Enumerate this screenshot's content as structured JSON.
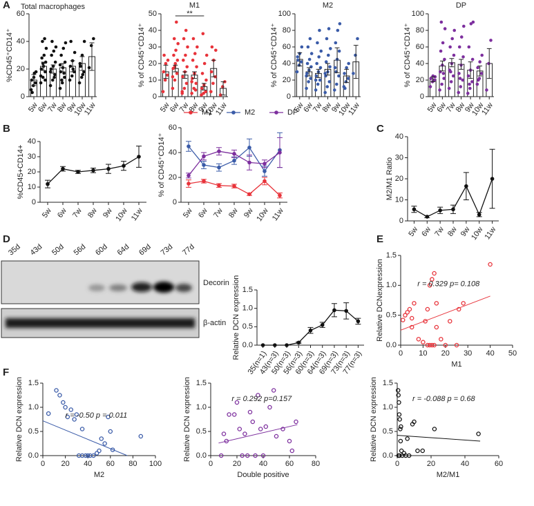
{
  "blot": {
    "lanes": [
      "35d",
      "43d",
      "50d",
      "56d",
      "60d",
      "64d",
      "69d",
      "73d",
      "77d"
    ],
    "targets": [
      "Decorin",
      "β-actin"
    ]
  },
  "chart_data": [
    {
      "type": "bar",
      "panel": "A",
      "title": "Total macrophages",
      "ylabel": "%CD45⁺CD14⁺",
      "categories": [
        "5w",
        "6w",
        "7w",
        "8w",
        "9w",
        "10w",
        "11w"
      ],
      "values": [
        12,
        22,
        20,
        21,
        22,
        24,
        29
      ],
      "errors": [
        4,
        3,
        3,
        3,
        4,
        5,
        10
      ],
      "color": "#111111",
      "ylim": [
        0,
        60
      ],
      "yticks": [
        0,
        20,
        40,
        60
      ],
      "points": [
        [
          5,
          8,
          10,
          12,
          14,
          18,
          3,
          17
        ],
        [
          10,
          14,
          18,
          20,
          22,
          25,
          28,
          30,
          35,
          40,
          42,
          15,
          24,
          12
        ],
        [
          8,
          12,
          16,
          20,
          22,
          25,
          30,
          33,
          36,
          40,
          14,
          18
        ],
        [
          6,
          10,
          14,
          18,
          21,
          25,
          30,
          35,
          39,
          12,
          17,
          23
        ],
        [
          12,
          15,
          18,
          22,
          26,
          32,
          40,
          20
        ],
        [
          10,
          14,
          18,
          24,
          30,
          40,
          22,
          16
        ],
        [
          21,
          37,
          42
        ]
      ]
    },
    {
      "type": "bar",
      "title": "M1",
      "ylabel": "% of CD45⁺CD14⁺",
      "categories": [
        "5w",
        "6w",
        "7w",
        "8w",
        "9w",
        "10w",
        "11w"
      ],
      "values": [
        15,
        17,
        13,
        13,
        6,
        17,
        5
      ],
      "errors": [
        4,
        2,
        2,
        2,
        2,
        5,
        4
      ],
      "color": "#e8333a",
      "ylim": [
        0,
        50
      ],
      "yticks": [
        0,
        10,
        20,
        30,
        40,
        50
      ],
      "significance": "**",
      "points": [
        [
          3,
          10,
          13,
          15,
          20,
          22,
          25
        ],
        [
          5,
          10,
          14,
          17,
          20,
          22,
          25,
          28,
          32,
          35,
          45,
          12,
          18
        ],
        [
          2,
          5,
          8,
          12,
          15,
          18,
          22,
          25,
          30,
          35,
          40,
          3
        ],
        [
          2,
          5,
          8,
          11,
          14,
          18,
          22,
          26,
          30,
          35,
          4,
          9
        ],
        [
          1,
          2,
          3,
          5,
          7,
          10,
          14,
          20,
          25,
          38
        ],
        [
          3,
          8,
          12,
          15,
          22,
          28,
          30
        ],
        [
          1,
          6,
          9
        ]
      ]
    },
    {
      "type": "bar",
      "title": "M2",
      "ylabel": "% of CD45⁺CD14⁺",
      "categories": [
        "5w",
        "6w",
        "7w",
        "8w",
        "9w",
        "10w",
        "11w"
      ],
      "values": [
        45,
        30,
        28,
        33,
        44,
        25,
        42
      ],
      "errors": [
        8,
        5,
        5,
        7,
        15,
        8,
        20
      ],
      "color": "#3a5ba8",
      "ylim": [
        0,
        100
      ],
      "yticks": [
        0,
        20,
        40,
        60,
        80,
        100
      ],
      "points": [
        [
          30,
          38,
          42,
          48,
          52,
          60,
          44
        ],
        [
          10,
          18,
          22,
          28,
          32,
          36,
          40,
          45,
          52,
          60,
          70,
          25
        ],
        [
          8,
          15,
          20,
          25,
          30,
          35,
          40,
          48,
          55,
          65,
          80,
          20
        ],
        [
          5,
          12,
          18,
          25,
          30,
          36,
          42,
          50,
          58,
          70,
          82,
          28
        ],
        [
          8,
          15,
          25,
          35,
          45,
          55,
          65,
          80,
          88,
          30
        ],
        [
          12,
          18,
          22,
          28,
          35,
          40,
          10
        ],
        [
          28,
          50,
          70
        ]
      ]
    },
    {
      "type": "bar",
      "title": "DP",
      "ylabel": "% of CD45⁺CD14⁺",
      "categories": [
        "5w",
        "6w",
        "7w",
        "8w",
        "9w",
        "10w",
        "11w"
      ],
      "values": [
        21,
        37,
        41,
        39,
        32,
        31,
        40
      ],
      "errors": [
        3,
        6,
        5,
        6,
        10,
        6,
        18
      ],
      "color": "#7d2f9e",
      "ylim": [
        0,
        100
      ],
      "yticks": [
        0,
        20,
        40,
        60,
        80,
        100
      ],
      "points": [
        [
          12,
          18,
          20,
          22,
          25,
          24
        ],
        [
          8,
          15,
          22,
          30,
          38,
          45,
          55,
          65,
          82,
          90,
          28
        ],
        [
          10,
          18,
          25,
          32,
          40,
          50,
          60,
          70,
          80,
          30
        ],
        [
          5,
          12,
          20,
          28,
          38,
          48,
          60,
          72,
          85,
          22
        ],
        [
          4,
          10,
          18,
          25,
          32,
          45,
          60,
          88,
          90,
          15
        ],
        [
          15,
          22,
          28,
          35,
          42,
          50,
          20
        ],
        [
          8,
          40,
          68
        ]
      ]
    },
    {
      "type": "line",
      "panel": "B",
      "ylabel": "%CD45+CD14+",
      "categories": [
        "5w",
        "6w",
        "7w",
        "8w",
        "9w",
        "10w",
        "11w"
      ],
      "values": [
        12,
        22,
        20,
        21,
        22,
        24,
        30
      ],
      "errors": [
        2.5,
        1.5,
        1,
        1.5,
        3,
        3,
        7
      ],
      "color": "#111111",
      "ylim": [
        0,
        40
      ],
      "yticks": [
        0,
        10,
        20,
        30,
        40
      ]
    },
    {
      "type": "line",
      "ylabel": "% of CD45⁺CD14⁺",
      "categories": [
        "5w",
        "6w",
        "7w",
        "8w",
        "9w",
        "10w",
        "11w"
      ],
      "ylim": [
        0,
        60
      ],
      "yticks": [
        0,
        20,
        40,
        60
      ],
      "series": [
        {
          "name": "M1",
          "color": "#e8333a",
          "values": [
            15,
            17,
            13.5,
            13,
            6.5,
            17,
            5.5
          ],
          "errors": [
            3,
            1.5,
            1.5,
            1.5,
            1,
            3,
            2
          ]
        },
        {
          "name": "M2",
          "color": "#3a5ba8",
          "values": [
            45,
            30,
            28,
            33.5,
            44,
            25,
            42
          ],
          "errors": [
            4,
            3,
            3,
            3,
            7,
            4,
            14
          ]
        },
        {
          "name": "DP",
          "color": "#7d2f9e",
          "values": [
            21.5,
            37,
            41,
            39,
            32,
            31,
            40
          ],
          "errors": [
            2,
            3,
            3,
            3,
            6,
            3,
            12
          ]
        }
      ]
    },
    {
      "type": "line",
      "panel": "C",
      "ylabel": "M2/M1 Ratio",
      "categories": [
        "5w",
        "6w",
        "7w",
        "8w",
        "9w",
        "10w",
        "11w"
      ],
      "values": [
        5.5,
        2,
        5,
        5.5,
        16.5,
        3,
        20
      ],
      "errors": [
        1.5,
        0.5,
        1.5,
        2,
        6.5,
        1,
        14
      ],
      "color": "#111111",
      "ylim": [
        0,
        40
      ],
      "yticks": [
        0,
        10,
        20,
        30,
        40
      ]
    },
    {
      "type": "line",
      "panel": "D",
      "ylabel": "Relative DCN expression",
      "categories": [
        "35(n=1)",
        "43(n=3)",
        "50(n=3)",
        "56(n=3)",
        "60(n=3)",
        "64(n=3)",
        "69(n=3)",
        "73(n=3)",
        "77(n=3)"
      ],
      "values": [
        0,
        0,
        0,
        0.07,
        0.4,
        0.55,
        0.95,
        0.93,
        0.65
      ],
      "errors": [
        0,
        0,
        0,
        0.02,
        0.08,
        0.07,
        0.18,
        0.22,
        0.08
      ],
      "color": "#111111",
      "ylim": [
        0,
        1.5
      ],
      "yticks": [
        {
          "value": 0,
          "label": "0.0"
        },
        0.5,
        {
          "value": 1,
          "label": "1.0"
        },
        1.5
      ]
    },
    {
      "type": "scatter",
      "panel": "E",
      "ylabel": "Relative DCNexpression",
      "xlabel": "M1",
      "annotation": "r = 0.329 p= 0.108",
      "color": "#e8333a",
      "xlim": [
        0,
        50
      ],
      "xticks": [
        0,
        10,
        20,
        30,
        40,
        50
      ],
      "ylim": [
        0,
        1.5
      ],
      "yticks": [
        {
          "value": 0,
          "label": "0.0"
        },
        0.5,
        {
          "value": 1,
          "label": "1.0"
        },
        1.5
      ],
      "x": [
        1,
        2,
        3,
        4,
        5,
        6,
        8,
        10,
        11,
        12,
        13,
        14,
        15,
        16,
        13,
        14,
        15,
        12,
        18,
        20,
        22,
        25,
        26,
        28,
        40,
        5,
        16
      ],
      "y": [
        0.42,
        0.5,
        0.55,
        0.6,
        0.3,
        0.7,
        0.1,
        0.05,
        0.4,
        0,
        1,
        1.1,
        1.2,
        0.7,
        0,
        0,
        0,
        0.6,
        0.1,
        0,
        0.4,
        0,
        0.6,
        0.7,
        1.35,
        0.45,
        0.3
      ],
      "fit": {
        "x": [
          0,
          40
        ],
        "y": [
          0.25,
          0.82
        ]
      }
    },
    {
      "type": "scatter",
      "panel": "F",
      "ylabel": "Relative DCN expression",
      "xlabel": "M2",
      "annotation": "r = -0.50 p = 0.011",
      "color": "#3a5ba8",
      "xlim": [
        0,
        100
      ],
      "xticks": [
        0,
        20,
        40,
        60,
        80,
        100
      ],
      "ylim": [
        0,
        1.5
      ],
      "yticks": [
        {
          "value": 0,
          "label": "0.0"
        },
        0.5,
        {
          "value": 1,
          "label": "1.0"
        },
        1.5
      ],
      "x": [
        5,
        12,
        15,
        18,
        20,
        22,
        25,
        28,
        30,
        32,
        35,
        38,
        40,
        42,
        45,
        48,
        50,
        52,
        55,
        58,
        60,
        62,
        35,
        87
      ],
      "y": [
        0.87,
        1.35,
        1.25,
        1.1,
        1,
        0.8,
        0.95,
        0.75,
        0.85,
        0,
        0,
        0,
        0,
        0,
        0,
        0.05,
        0.1,
        0.35,
        0.25,
        0.8,
        0.5,
        0.12,
        0.55,
        0.4
      ],
      "fit": {
        "x": [
          0,
          75
        ],
        "y": [
          0.72,
          0
        ]
      }
    },
    {
      "type": "scatter",
      "ylabel": "Relative DCN expression",
      "xlabel": "Double positive",
      "annotation": "r = 0.292 p=0.157",
      "color": "#7d2f9e",
      "xlim": [
        0,
        80
      ],
      "xticks": [
        0,
        20,
        40,
        60,
        80
      ],
      "ylim": [
        0,
        1.5
      ],
      "yticks": [
        {
          "value": 0,
          "label": "0.0"
        },
        0.5,
        {
          "value": 1,
          "label": "1.0"
        },
        1.5
      ],
      "x": [
        8,
        10,
        12,
        14,
        18,
        20,
        22,
        24,
        26,
        28,
        30,
        32,
        34,
        36,
        38,
        40,
        42,
        45,
        48,
        50,
        55,
        60,
        62,
        65
      ],
      "y": [
        0,
        0.45,
        0.3,
        0.85,
        0.85,
        1.1,
        0.55,
        0,
        0.45,
        0,
        0.9,
        0.7,
        0,
        1.25,
        0.55,
        0,
        0.6,
        1,
        1.35,
        0.4,
        0.55,
        0.3,
        0.1,
        0.7
      ],
      "fit": {
        "x": [
          6,
          66
        ],
        "y": [
          0.26,
          0.64
        ]
      }
    },
    {
      "type": "scatter",
      "ylabel": "Relative DCN expression",
      "xlabel": "M2/M1",
      "annotation": "r = -0.088 p = 0.68",
      "color": "#111111",
      "xlim": [
        0,
        60
      ],
      "xticks": [
        0,
        20,
        40,
        60
      ],
      "ylim": [
        0,
        1.5
      ],
      "yticks": [
        {
          "value": 0,
          "label": "0.0"
        },
        0.5,
        {
          "value": 1,
          "label": "1.0"
        },
        1.5
      ],
      "x": [
        0.5,
        0.7,
        1,
        1.2,
        1.5,
        1.8,
        2,
        2.5,
        0.8,
        1.3,
        3,
        4,
        5,
        7,
        9,
        10,
        12,
        15,
        22,
        48,
        2.2,
        6
      ],
      "y": [
        1.35,
        1.25,
        1.1,
        0.85,
        0.75,
        0.55,
        0.3,
        0.1,
        0,
        0,
        0,
        0.05,
        0,
        0,
        0.65,
        0.7,
        0.1,
        0.1,
        0.55,
        0.45,
        0.6,
        0.35
      ],
      "fit": {
        "x": [
          0,
          49
        ],
        "y": [
          0.42,
          0.3
        ]
      }
    }
  ]
}
